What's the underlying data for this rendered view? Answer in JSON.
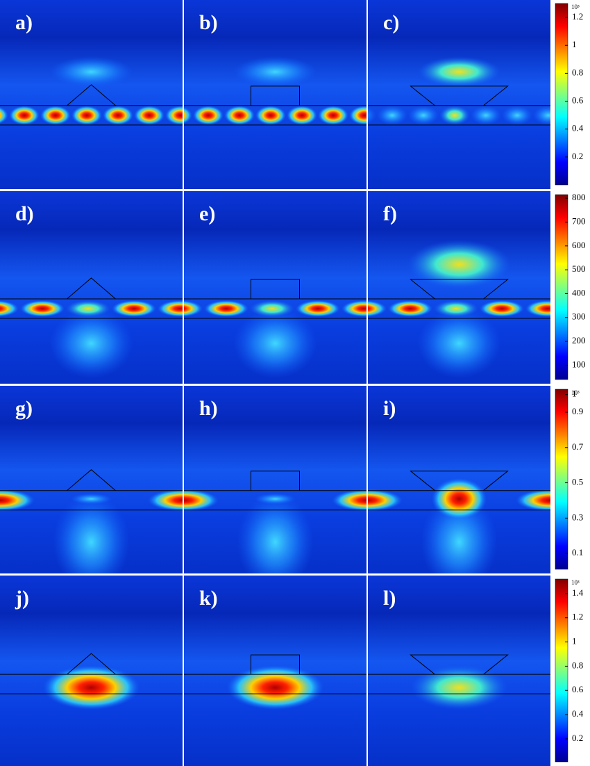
{
  "panels": [
    "a)",
    "b)",
    "c)",
    "d)",
    "e)",
    "f)",
    "g)",
    "h)",
    "i)",
    "j)",
    "k)",
    "l)"
  ],
  "colorbars": [
    {
      "exponent": "10³",
      "ticks": [
        1.2,
        1,
        0.8,
        0.6,
        0.4,
        0.2
      ],
      "range": [
        0,
        1.3
      ]
    },
    {
      "ticks": [
        800,
        700,
        600,
        500,
        400,
        300,
        200,
        100
      ],
      "range": [
        40,
        815
      ]
    },
    {
      "exponent": "10³",
      "ticks": [
        1,
        0.9,
        0.7,
        0.5,
        0.3,
        0.1
      ],
      "range": [
        0.01,
        1.03
      ]
    },
    {
      "exponent": "10³",
      "ticks": [
        1.4,
        1.2,
        1,
        0.8,
        0.6,
        0.4,
        0.2
      ],
      "range": [
        0.01,
        1.52
      ]
    }
  ]
}
